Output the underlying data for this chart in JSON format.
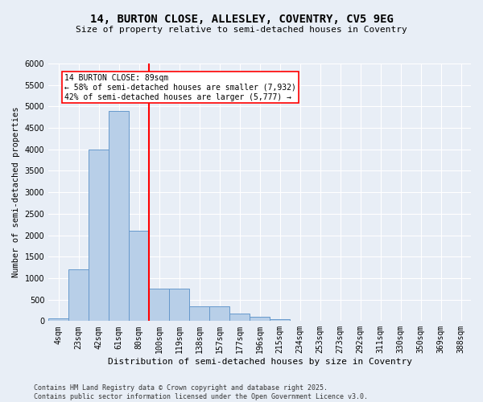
{
  "title_line1": "14, BURTON CLOSE, ALLESLEY, COVENTRY, CV5 9EG",
  "title_line2": "Size of property relative to semi-detached houses in Coventry",
  "xlabel": "Distribution of semi-detached houses by size in Coventry",
  "ylabel": "Number of semi-detached properties",
  "bin_labels": [
    "4sqm",
    "23sqm",
    "42sqm",
    "61sqm",
    "80sqm",
    "100sqm",
    "119sqm",
    "138sqm",
    "157sqm",
    "177sqm",
    "196sqm",
    "215sqm",
    "234sqm",
    "253sqm",
    "273sqm",
    "292sqm",
    "311sqm",
    "330sqm",
    "350sqm",
    "369sqm",
    "388sqm"
  ],
  "bar_values": [
    60,
    1200,
    4000,
    4900,
    2100,
    750,
    750,
    350,
    350,
    180,
    100,
    50,
    0,
    0,
    0,
    0,
    0,
    0,
    0,
    0,
    0
  ],
  "bar_color": "#b8cfe8",
  "bar_edge_color": "#6699cc",
  "vline_x": 4.5,
  "annotation_title": "14 BURTON CLOSE: 89sqm",
  "annotation_line1": "← 58% of semi-detached houses are smaller (7,932)",
  "annotation_line2": "42% of semi-detached houses are larger (5,777) →",
  "ylim": [
    0,
    6000
  ],
  "yticks": [
    0,
    500,
    1000,
    1500,
    2000,
    2500,
    3000,
    3500,
    4000,
    4500,
    5000,
    5500,
    6000
  ],
  "footer_line1": "Contains HM Land Registry data © Crown copyright and database right 2025.",
  "footer_line2": "Contains public sector information licensed under the Open Government Licence v3.0.",
  "background_color": "#e8eef6",
  "plot_background": "#e8eef6",
  "title_fontsize": 10,
  "subtitle_fontsize": 8,
  "xlabel_fontsize": 8,
  "ylabel_fontsize": 7.5,
  "tick_fontsize": 7,
  "annotation_fontsize": 7,
  "footer_fontsize": 6
}
